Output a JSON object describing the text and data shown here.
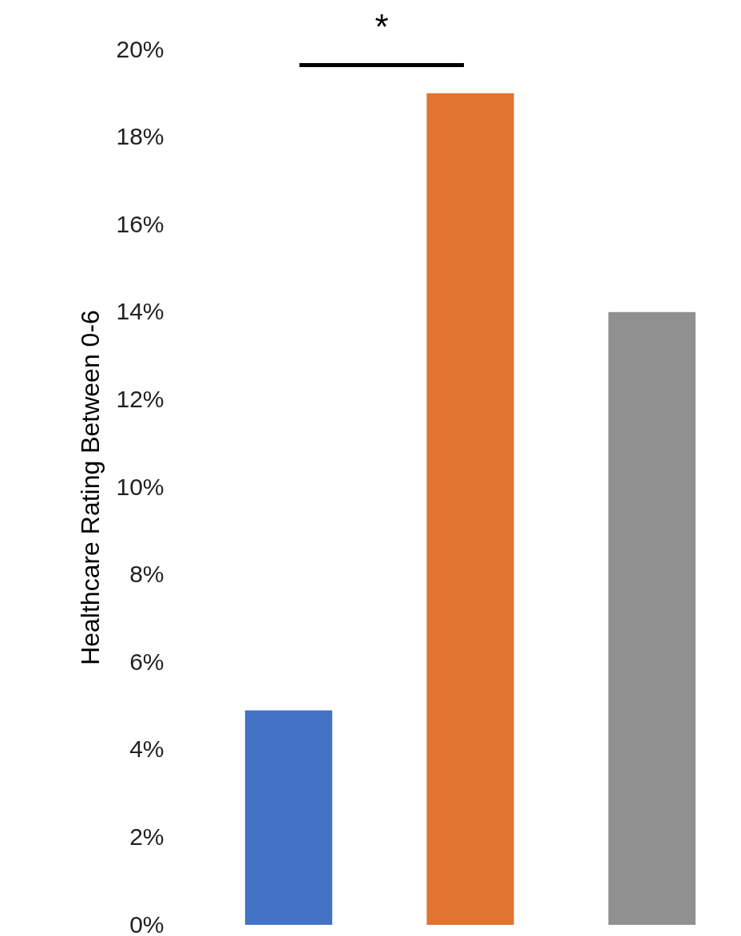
{
  "chart_data": {
    "type": "bar",
    "ylabel": "Healthcare Rating Between 0-6",
    "categories": [
      null,
      null,
      null
    ],
    "values": [
      4.9,
      19,
      14
    ],
    "colors": [
      "#4472c4",
      "#e07430",
      "#909090"
    ],
    "ylim": [
      0,
      20
    ],
    "yticks": [
      {
        "value": 0,
        "label": "0%"
      },
      {
        "value": 2,
        "label": "2%"
      },
      {
        "value": 4,
        "label": "4%"
      },
      {
        "value": 6,
        "label": "6%"
      },
      {
        "value": 8,
        "label": "8%"
      },
      {
        "value": 10,
        "label": "10%"
      },
      {
        "value": 12,
        "label": "12%"
      },
      {
        "value": 14,
        "label": "14%"
      },
      {
        "value": 16,
        "label": "16%"
      },
      {
        "value": 18,
        "label": "18%"
      },
      {
        "value": 20,
        "label": "20%"
      }
    ],
    "annotations": [
      "*"
    ]
  }
}
